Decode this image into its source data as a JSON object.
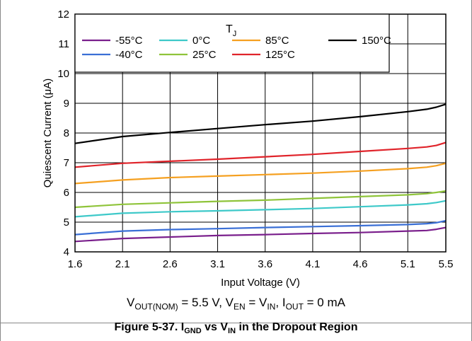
{
  "chart_data": {
    "type": "line",
    "title": "",
    "xlabel": "Input Voltage (V)",
    "ylabel": "Quiescent Current (μA)",
    "xlim": [
      1.6,
      5.5
    ],
    "ylim": [
      4,
      12
    ],
    "xticks": [
      "1.6",
      "2.1",
      "2.6",
      "3.1",
      "3.6",
      "4.1",
      "4.6",
      "5.1",
      "5.5"
    ],
    "yticks": [
      "4",
      "5",
      "6",
      "7",
      "8",
      "9",
      "10",
      "11",
      "12"
    ],
    "grid": true,
    "legend_title_main": "T",
    "legend_title_sub": "J",
    "legend_placement": "top",
    "x": [
      1.6,
      2.1,
      2.6,
      3.1,
      3.6,
      4.1,
      4.6,
      5.1,
      5.3,
      5.4,
      5.5
    ],
    "series": [
      {
        "name": "-55°C",
        "color": "#7a1f8c",
        "values": [
          4.35,
          4.45,
          4.5,
          4.55,
          4.58,
          4.62,
          4.65,
          4.7,
          4.72,
          4.76,
          4.82
        ]
      },
      {
        "name": "-40°C",
        "color": "#3a6fd6",
        "values": [
          4.58,
          4.7,
          4.75,
          4.78,
          4.82,
          4.85,
          4.88,
          4.92,
          4.95,
          4.98,
          5.05
        ]
      },
      {
        "name": "0°C",
        "color": "#3ec9c9",
        "values": [
          5.18,
          5.3,
          5.35,
          5.38,
          5.42,
          5.46,
          5.52,
          5.58,
          5.62,
          5.66,
          5.72
        ]
      },
      {
        "name": "25°C",
        "color": "#8fc43a",
        "values": [
          5.5,
          5.6,
          5.65,
          5.7,
          5.74,
          5.8,
          5.86,
          5.92,
          5.96,
          6.0,
          6.05
        ]
      },
      {
        "name": "85°C",
        "color": "#f5a020",
        "values": [
          6.3,
          6.42,
          6.5,
          6.55,
          6.6,
          6.65,
          6.72,
          6.8,
          6.85,
          6.9,
          6.98
        ]
      },
      {
        "name": "125°C",
        "color": "#e0242b",
        "values": [
          6.85,
          6.98,
          7.05,
          7.12,
          7.2,
          7.28,
          7.38,
          7.48,
          7.53,
          7.58,
          7.68
        ]
      },
      {
        "name": "150°C",
        "color": "#000000",
        "values": [
          7.65,
          7.88,
          8.02,
          8.15,
          8.28,
          8.4,
          8.55,
          8.72,
          8.8,
          8.87,
          8.97
        ]
      }
    ]
  },
  "conditions": {
    "v": "V",
    "v_sub": "OUT(NOM)",
    "t1": " = 5.5 V, ",
    "v2": "V",
    "v2_sub": "EN",
    "t2": " = V",
    "v3_sub": "IN",
    "t3": ", ",
    "i": "I",
    "i_sub": "OUT",
    "t4": " = 0 mA"
  },
  "caption": {
    "prefix": "Figure 5-37. I",
    "sub1": "GND",
    "mid": " vs V",
    "sub2": "IN",
    "suffix": " in the Dropout Region"
  }
}
